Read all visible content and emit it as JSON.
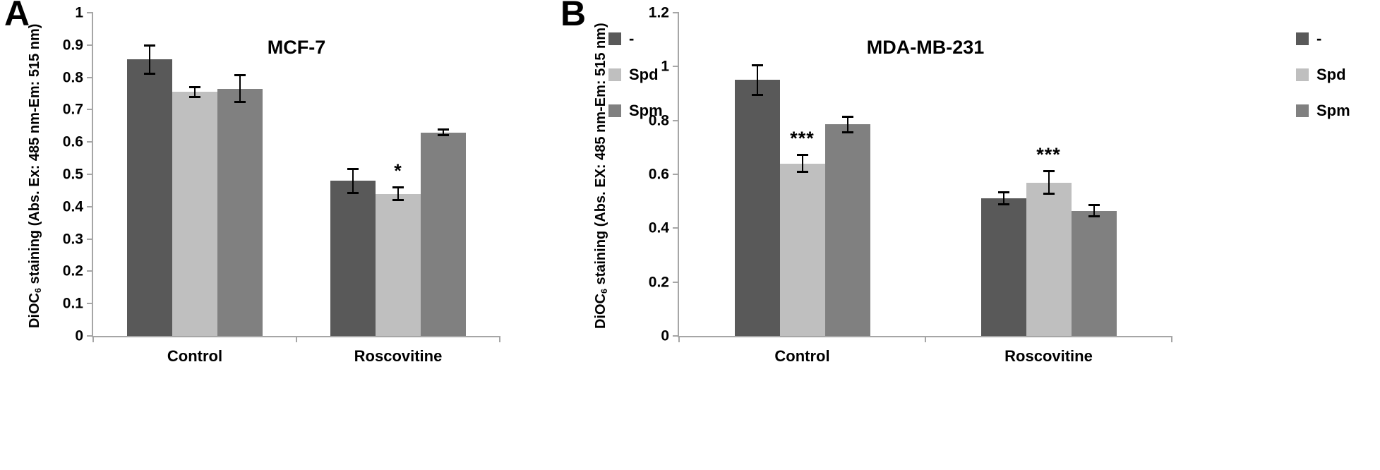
{
  "colors": {
    "series_dash": "#595959",
    "series_spd": "#bfbfbf",
    "series_spm": "#808080",
    "axis": "#a6a6a6",
    "error_bar": "#000000"
  },
  "chart_data": [
    {
      "type": "bar",
      "panel_label": "A",
      "title": "MCF-7",
      "ylabel_prefix": "DiOC",
      "ylabel_sub": "6",
      "ylabel_rest": " staining (Abs. Ex: 485 nm-Em: 515 nm)",
      "ylim": [
        0,
        1
      ],
      "yticks": [
        "1",
        "0.9",
        "0.8",
        "0.7",
        "0.6",
        "0.5",
        "0.4",
        "0.3",
        "0.2",
        "0.1",
        "0"
      ],
      "categories": [
        "Control",
        "Roscovitine"
      ],
      "series": [
        {
          "name": "-",
          "color": "#595959",
          "values": [
            0.855,
            0.48
          ],
          "errors": [
            0.047,
            0.04
          ],
          "sig": [
            "",
            ""
          ]
        },
        {
          "name": "Spd",
          "color": "#bfbfbf",
          "values": [
            0.755,
            0.44
          ],
          "errors": [
            0.018,
            0.022
          ],
          "sig": [
            "",
            "*"
          ]
        },
        {
          "name": "Spm",
          "color": "#808080",
          "values": [
            0.765,
            0.63
          ],
          "errors": [
            0.045,
            0.012
          ],
          "sig": [
            "",
            ""
          ]
        }
      ],
      "legend": [
        "-",
        "Spd",
        "Spm"
      ],
      "legend_position": "top-right",
      "grid": false
    },
    {
      "type": "bar",
      "panel_label": "B",
      "title": "MDA-MB-231",
      "ylabel_prefix": "DiOC",
      "ylabel_sub": "6",
      "ylabel_rest": " staining (Abs. EX: 485 nm-Em: 515 nm)",
      "ylim": [
        0,
        1.2
      ],
      "yticks": [
        "1.2",
        "1",
        "0.8",
        "0.6",
        "0.4",
        "0.2",
        "0"
      ],
      "categories": [
        "Control",
        "Roscovitine"
      ],
      "series": [
        {
          "name": "-",
          "color": "#595959",
          "values": [
            0.95,
            0.51
          ],
          "errors": [
            0.06,
            0.026
          ],
          "sig": [
            "",
            ""
          ]
        },
        {
          "name": "Spd",
          "color": "#bfbfbf",
          "values": [
            0.64,
            0.57
          ],
          "errors": [
            0.035,
            0.046
          ],
          "sig": [
            "***",
            "***"
          ]
        },
        {
          "name": "Spm",
          "color": "#808080",
          "values": [
            0.785,
            0.465
          ],
          "errors": [
            0.032,
            0.026
          ],
          "sig": [
            "",
            ""
          ]
        }
      ],
      "legend": [
        "-",
        "Spd",
        "Spm"
      ],
      "legend_position": "top-right",
      "grid": false
    }
  ]
}
